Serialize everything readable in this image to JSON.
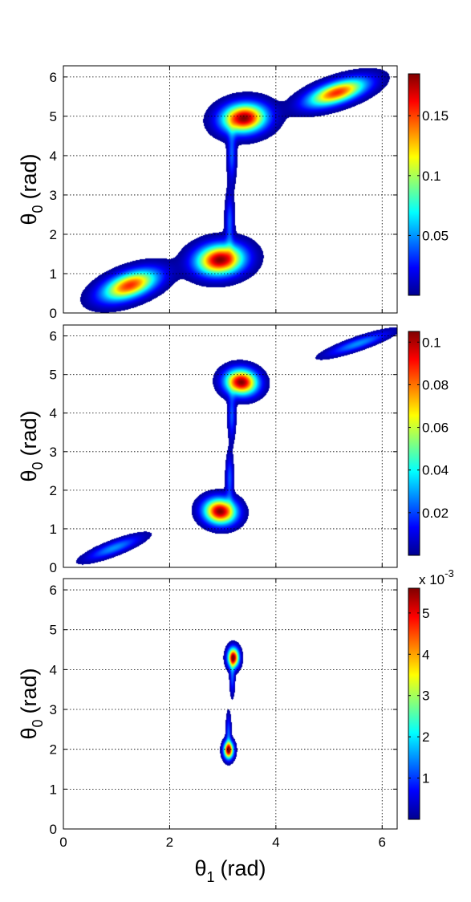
{
  "chart_data": [
    {
      "type": "heatmap",
      "panel": "top",
      "title": "",
      "ylabel": {
        "symbol": "θ",
        "sub": "0",
        "unit": "(rad)"
      },
      "xlim": [
        0,
        6.283
      ],
      "ylim": [
        0,
        6.283
      ],
      "x_ticks": [
        "0",
        "2",
        "4",
        "6"
      ],
      "y_ticks": [
        "0",
        "1",
        "2",
        "3",
        "4",
        "5",
        "6"
      ],
      "grid": true,
      "colorbar": {
        "min": 0.0,
        "max": 0.185,
        "ticks": [
          "0.05",
          "0.1",
          "0.15"
        ],
        "tick_values": [
          0.05,
          0.1,
          0.15
        ],
        "exponent": ""
      },
      "blobs": [
        {
          "x": 1.25,
          "y": 0.7,
          "sx": 0.38,
          "sy": 0.2,
          "rot": 0.52,
          "peak": 0.155
        },
        {
          "x": 2.95,
          "y": 1.35,
          "sx": 0.3,
          "sy": 0.25,
          "rot": 0.3,
          "peak": 0.185
        },
        {
          "x": 3.4,
          "y": 4.95,
          "sx": 0.28,
          "sy": 0.24,
          "rot": 0.3,
          "peak": 0.185
        },
        {
          "x": 5.15,
          "y": 5.6,
          "sx": 0.4,
          "sy": 0.17,
          "rot": 0.45,
          "peak": 0.155
        }
      ],
      "tails": [
        {
          "x": 3.13,
          "y": 2.3,
          "sx": 0.05,
          "sy": 0.45,
          "peak": 0.04
        },
        {
          "x": 3.17,
          "y": 4.05,
          "sx": 0.05,
          "sy": 0.45,
          "peak": 0.04
        }
      ],
      "threshold": 0.004
    },
    {
      "type": "heatmap",
      "panel": "middle",
      "title": "",
      "ylabel": {
        "symbol": "θ",
        "sub": "0",
        "unit": "(rad)"
      },
      "xlim": [
        0,
        6.283
      ],
      "ylim": [
        0,
        6.283
      ],
      "x_ticks": [
        "0",
        "2",
        "4",
        "6"
      ],
      "y_ticks": [
        "0",
        "1",
        "2",
        "3",
        "4",
        "5",
        "6"
      ],
      "grid": true,
      "colorbar": {
        "min": 0.0,
        "max": 0.105,
        "ticks": [
          "0.02",
          "0.04",
          "0.06",
          "0.08",
          "0.1"
        ],
        "tick_values": [
          0.02,
          0.04,
          0.06,
          0.08,
          0.1
        ],
        "exponent": ""
      },
      "blobs": [
        {
          "x": 0.95,
          "y": 0.5,
          "sx": 0.38,
          "sy": 0.1,
          "rot": 0.5,
          "peak": 0.028
        },
        {
          "x": 2.95,
          "y": 1.45,
          "sx": 0.2,
          "sy": 0.22,
          "rot": 0.3,
          "peak": 0.105
        },
        {
          "x": 3.35,
          "y": 4.8,
          "sx": 0.2,
          "sy": 0.22,
          "rot": 0.3,
          "peak": 0.105
        },
        {
          "x": 5.55,
          "y": 5.8,
          "sx": 0.42,
          "sy": 0.09,
          "rot": 0.45,
          "peak": 0.028
        }
      ],
      "tails": [
        {
          "x": 3.13,
          "y": 2.3,
          "sx": 0.045,
          "sy": 0.4,
          "peak": 0.022
        },
        {
          "x": 3.17,
          "y": 3.95,
          "sx": 0.045,
          "sy": 0.4,
          "peak": 0.022
        }
      ],
      "threshold": 0.003
    },
    {
      "type": "heatmap",
      "panel": "bottom",
      "title": "",
      "xlabel": {
        "symbol": "θ",
        "sub": "1",
        "unit": "(rad)"
      },
      "ylabel": {
        "symbol": "θ",
        "sub": "0",
        "unit": "(rad)"
      },
      "xlim": [
        0,
        6.283
      ],
      "ylim": [
        0,
        6.283
      ],
      "x_ticks": [
        "0",
        "2",
        "4",
        "6"
      ],
      "y_ticks": [
        "0",
        "1",
        "2",
        "3",
        "4",
        "5",
        "6"
      ],
      "grid": true,
      "colorbar": {
        "min": 0.0,
        "max": 5.6,
        "ticks": [
          "1",
          "2",
          "3",
          "4",
          "5"
        ],
        "tick_values": [
          1,
          2,
          3,
          4,
          5
        ],
        "exponent": "x 10",
        "exponent_power": "-3"
      },
      "blobs": [
        {
          "x": 3.11,
          "y": 1.98,
          "sx": 0.06,
          "sy": 0.14,
          "rot": 0.0,
          "peak": 5.6
        },
        {
          "x": 3.2,
          "y": 4.3,
          "sx": 0.07,
          "sy": 0.16,
          "rot": 0.0,
          "peak": 5.6
        }
      ],
      "tails": [
        {
          "x": 3.11,
          "y": 2.4,
          "sx": 0.03,
          "sy": 0.3,
          "peak": 1.2
        },
        {
          "x": 3.18,
          "y": 3.85,
          "sx": 0.03,
          "sy": 0.3,
          "peak": 1.2
        }
      ],
      "threshold": 0.15
    }
  ]
}
